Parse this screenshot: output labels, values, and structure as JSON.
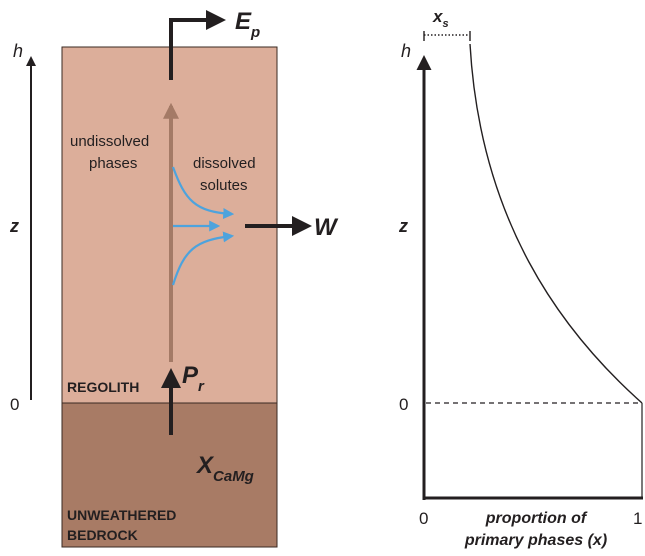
{
  "left_panel": {
    "axis": {
      "top_label": "h",
      "mid_label": "z",
      "bottom_label": "0"
    },
    "labels": {
      "undissolved_line1": "undissolved",
      "undissolved_line2": "phases",
      "dissolved_line1": "dissolved",
      "dissolved_line2": "solutes",
      "regolith": "REGOLITH",
      "bedrock_line1": "UNWEATHERED",
      "bedrock_line2": "BEDROCK"
    },
    "symbols": {
      "ep_main": "E",
      "ep_sub": "p",
      "w": "W",
      "pr_main": "P",
      "pr_sub": "r",
      "x_main": "X",
      "x_sub": "CaMg"
    },
    "colors": {
      "regolith": "#dcae9a",
      "bedrock": "#a87b65",
      "flow_arrow": "#a47a66",
      "solute_arrow": "#4da3dd",
      "ink": "#231f20"
    }
  },
  "right_panel": {
    "axis": {
      "y_top_label": "h",
      "y_mid_label": "z",
      "y_zero_label": "0",
      "x_zero_label": "0",
      "x_one_label": "1",
      "xlabel_line1": "proportion of",
      "xlabel_line2": "primary phases (x)"
    },
    "xs_main": "x",
    "xs_sub": "s"
  }
}
